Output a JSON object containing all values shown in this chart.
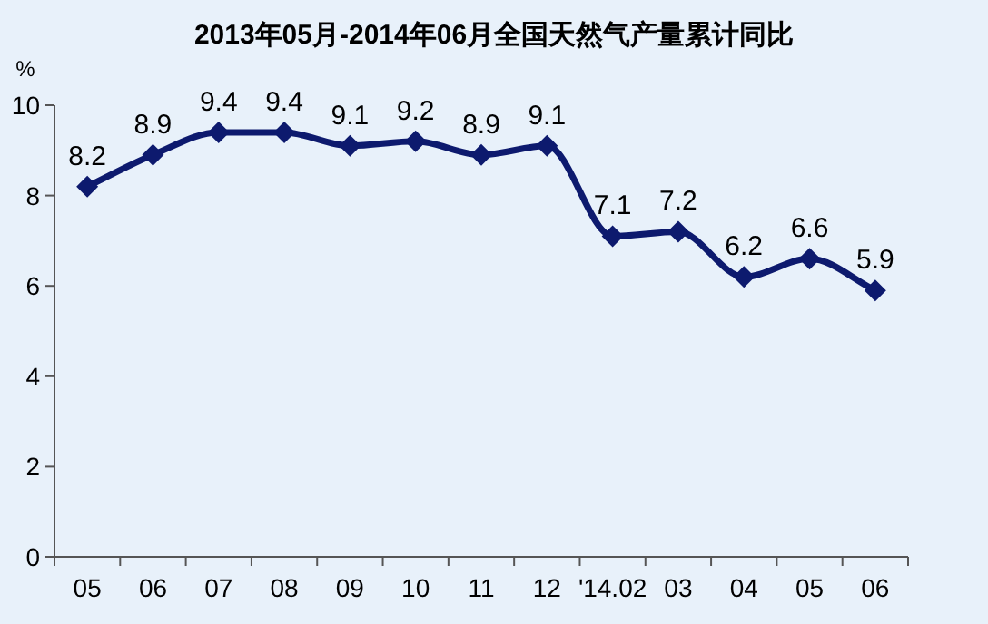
{
  "chart_data": {
    "type": "line",
    "title": "2013年05月-2014年06月全国天然气产量累计同比",
    "ylabel": "%",
    "categories": [
      "05",
      "06",
      "07",
      "08",
      "09",
      "10",
      "11",
      "12",
      "'14.02",
      "03",
      "04",
      "05",
      "06"
    ],
    "series": [
      {
        "color": "#0d1a6e",
        "values": [
          8.2,
          8.9,
          9.4,
          9.4,
          9.1,
          9.2,
          8.9,
          9.1,
          7.1,
          7.2,
          6.2,
          6.6,
          5.9
        ]
      }
    ],
    "ylim": [
      0,
      10
    ],
    "yticks": [
      0,
      2,
      4,
      6,
      8,
      10
    ],
    "data_labels": true,
    "marker": "diamond",
    "line_style": "solid",
    "grid": false
  }
}
